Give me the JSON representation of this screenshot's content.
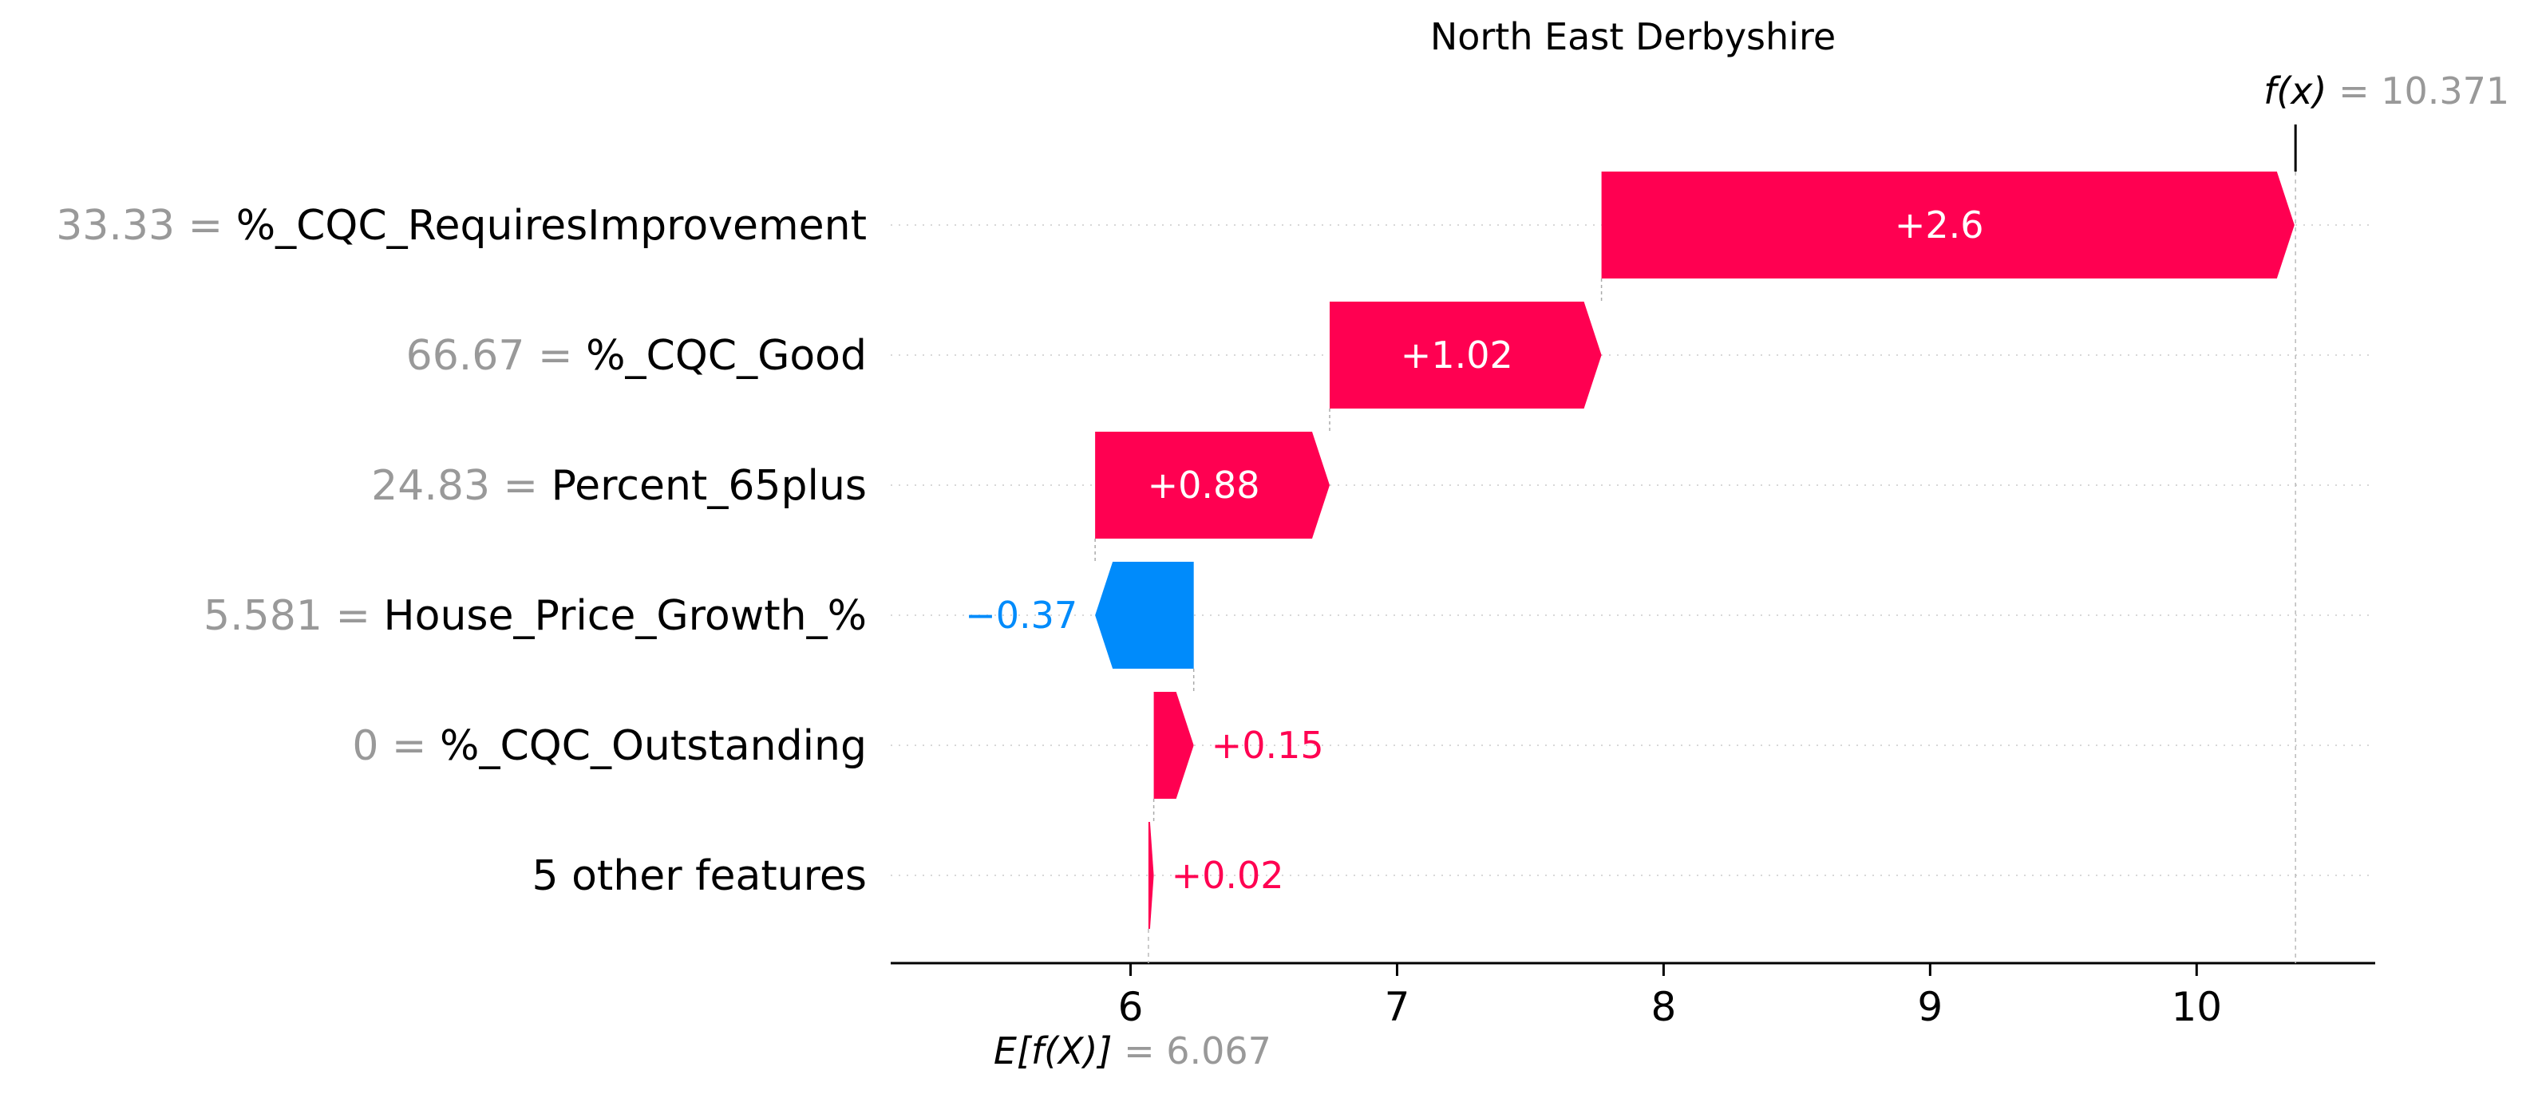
{
  "chart_data": {
    "type": "waterfall",
    "title": "North East Derbyshire",
    "base_value": 6.067,
    "final_value": 10.371,
    "base_label": "E[f(X)]",
    "base_value_text": "= 6.067",
    "final_label": "f(x)",
    "final_value_text": "= 10.371",
    "xlim": [
      5.1,
      10.67
    ],
    "xticks": [
      6,
      7,
      8,
      9,
      10
    ],
    "features": [
      {
        "value": "33.33",
        "name": "%_CQC_RequiresImprovement",
        "shap": 2.6,
        "label": "+2.6"
      },
      {
        "value": "66.67",
        "name": "%_CQC_Good",
        "shap": 1.02,
        "label": "+1.02"
      },
      {
        "value": "24.83",
        "name": "Percent_65plus",
        "shap": 0.88,
        "label": "+0.88"
      },
      {
        "value": "5.581",
        "name": "House_Price_Growth_%",
        "shap": -0.37,
        "label": "−0.37"
      },
      {
        "value": "0",
        "name": "%_CQC_Outstanding",
        "shap": 0.15,
        "label": "+0.15"
      },
      {
        "value": "",
        "name": "5 other features",
        "shap": 0.02,
        "label": "+0.02"
      }
    ],
    "colors": {
      "positive": "#ff0051",
      "negative": "#008bfb",
      "muted": "#999999"
    }
  }
}
